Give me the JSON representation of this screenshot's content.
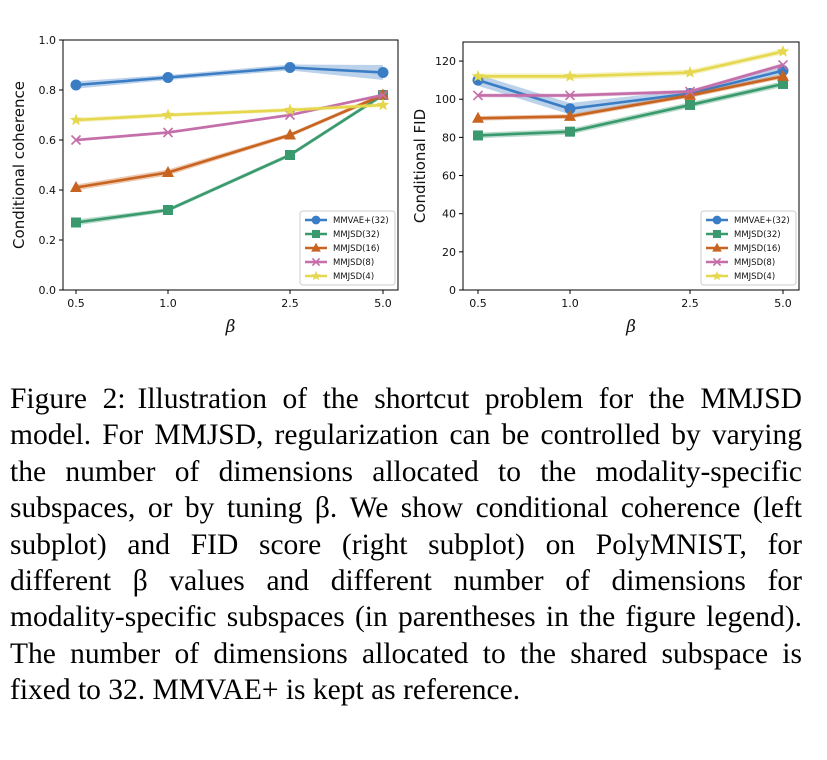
{
  "chart_data": [
    {
      "type": "line",
      "xlabel": "β",
      "ylabel": "Conditional coherence",
      "categories": [
        "0.5",
        "1.0",
        "2.5",
        "5.0"
      ],
      "ylim": [
        0.0,
        1.0
      ],
      "yticks": [
        "0.0",
        "0.2",
        "0.4",
        "0.6",
        "0.8",
        "1.0"
      ],
      "legend": "lower-right",
      "series": [
        {
          "name": "MMVAE+(32)",
          "color": "#3b7dc4",
          "marker": "circle",
          "values": [
            0.82,
            0.85,
            0.89,
            0.87
          ],
          "band": [
            0.015,
            0.01,
            0.012,
            0.03
          ]
        },
        {
          "name": "MMJSD(32)",
          "color": "#3a9a6e",
          "marker": "square",
          "values": [
            0.27,
            0.32,
            0.54,
            0.78
          ],
          "band": [
            0.012,
            0.008,
            0.008,
            0.008
          ]
        },
        {
          "name": "MMJSD(16)",
          "color": "#c8641f",
          "marker": "triangle",
          "values": [
            0.41,
            0.47,
            0.62,
            0.78
          ],
          "band": [
            0.012,
            0.012,
            0.008,
            0.008
          ]
        },
        {
          "name": "MMJSD(8)",
          "color": "#c46eaa",
          "marker": "x",
          "values": [
            0.6,
            0.63,
            0.7,
            0.78
          ],
          "band": [
            0.006,
            0.006,
            0.006,
            0.006
          ]
        },
        {
          "name": "MMJSD(4)",
          "color": "#e5d84e",
          "marker": "star",
          "values": [
            0.68,
            0.7,
            0.72,
            0.74
          ],
          "band": [
            0.01,
            0.008,
            0.008,
            0.008
          ]
        }
      ]
    },
    {
      "type": "line",
      "xlabel": "β",
      "ylabel": "Conditional FID",
      "categories": [
        "0.5",
        "1.0",
        "2.5",
        "5.0"
      ],
      "ylim": [
        0,
        130
      ],
      "yticks": [
        "0",
        "20",
        "40",
        "60",
        "80",
        "100",
        "120"
      ],
      "legend": "lower-right",
      "series": [
        {
          "name": "MMVAE+(32)",
          "color": "#3b7dc4",
          "marker": "circle",
          "values": [
            110,
            95,
            103,
            115
          ],
          "band": [
            3,
            3,
            2,
            2
          ]
        },
        {
          "name": "MMJSD(32)",
          "color": "#3a9a6e",
          "marker": "square",
          "values": [
            81,
            83,
            97,
            108
          ],
          "band": [
            1.5,
            1.5,
            1.5,
            1.5
          ]
        },
        {
          "name": "MMJSD(16)",
          "color": "#c8641f",
          "marker": "triangle",
          "values": [
            90,
            91,
            102,
            112
          ],
          "band": [
            1.2,
            1.2,
            1.2,
            1.2
          ]
        },
        {
          "name": "MMJSD(8)",
          "color": "#c46eaa",
          "marker": "x",
          "values": [
            102,
            102,
            104,
            118
          ],
          "band": [
            1,
            1,
            1,
            1
          ]
        },
        {
          "name": "MMJSD(4)",
          "color": "#e5d84e",
          "marker": "star",
          "values": [
            112,
            112,
            114,
            125
          ],
          "band": [
            1.5,
            1.5,
            1.5,
            1.5
          ]
        }
      ]
    }
  ],
  "caption": {
    "label": "Figure 2:",
    "text": "Illustration of the shortcut problem for the MMJSD model. For MMJSD, regularization can be con­trolled by varying the number of dimensions allocated to the modality-specific subspaces, or by tuning β. We show con­ditional coherence (left subplot) and FID score (right sub­plot) on PolyMNIST, for different β values and different number of dimensions for modality-specific subspaces (in parentheses in the figure legend). The number of dimen­sions allocated to the shared subspace is fixed to 32. MM­VAE+ is kept as reference."
  }
}
